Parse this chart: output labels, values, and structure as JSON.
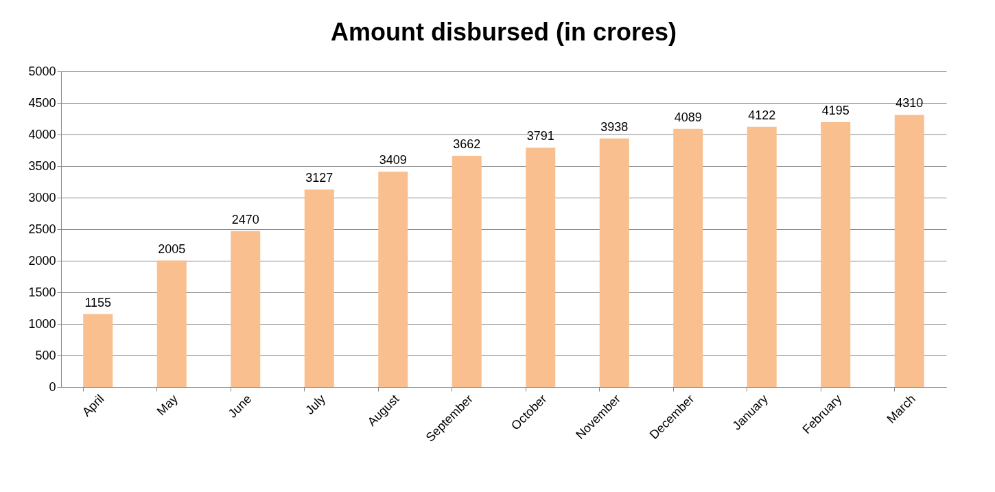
{
  "chart_data": {
    "type": "bar",
    "title": "Amount disbursed (in crores)",
    "categories": [
      "April",
      "May",
      "June",
      "July",
      "August",
      "September",
      "October",
      "November",
      "December",
      "January",
      "February",
      "March"
    ],
    "values": [
      1155,
      2005,
      2470,
      3127,
      3409,
      3662,
      3791,
      3938,
      4089,
      4122,
      4195,
      4310
    ],
    "color": "#f9bf8f",
    "ylim": [
      0,
      5000
    ],
    "yticks": [
      0,
      500,
      1000,
      1500,
      2000,
      2500,
      3000,
      3500,
      4000,
      4500,
      5000
    ],
    "grid": "y",
    "data_labels": true
  }
}
